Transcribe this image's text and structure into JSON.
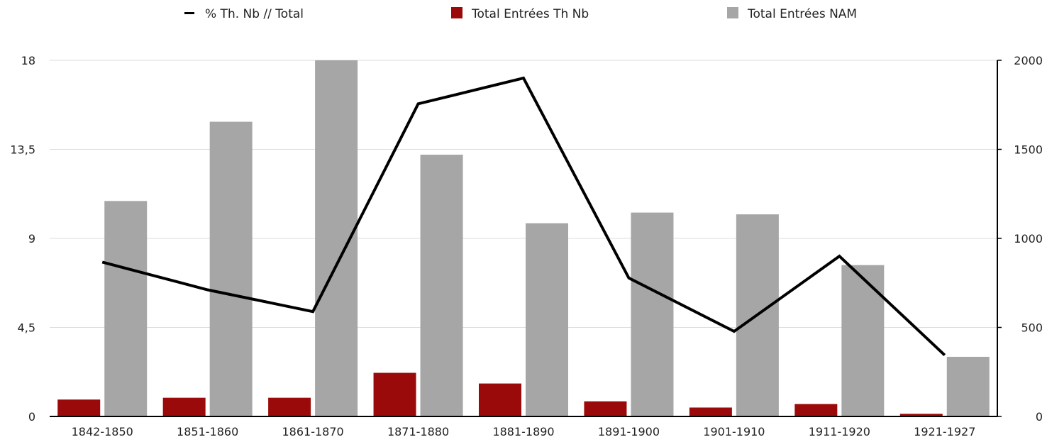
{
  "chart_data": {
    "type": "bar",
    "categories": [
      "1842-1850",
      "1851-1860",
      "1861-1870",
      "1871-1880",
      "1881-1890",
      "1891-1900",
      "1901-1910",
      "1911-1920",
      "1921-1927"
    ],
    "series": [
      {
        "name": "Total Entrées Th Nb",
        "type": "bar",
        "axis": "right",
        "color": "#9b0a0a",
        "values": [
          95,
          105,
          105,
          245,
          185,
          85,
          50,
          70,
          15
        ]
      },
      {
        "name": "Total Entrées NAM",
        "type": "bar",
        "axis": "right",
        "color": "#a6a6a6",
        "values": [
          1210,
          1655,
          2000,
          1470,
          1085,
          1145,
          1135,
          850,
          335
        ]
      },
      {
        "name": "% Th. Nb // Total",
        "type": "line",
        "axis": "left",
        "color": "#000000",
        "values": [
          7.8,
          6.4,
          5.3,
          15.8,
          17.1,
          7.0,
          4.3,
          8.1,
          3.1
        ]
      }
    ],
    "y_left": {
      "ylim": [
        0,
        18
      ],
      "ticks": [
        "0",
        "4,5",
        "9",
        "13,5",
        "18"
      ]
    },
    "y_right": {
      "ylim": [
        0,
        2000
      ],
      "ticks": [
        "0",
        "500",
        "1000",
        "1500",
        "2000"
      ]
    },
    "grid": true,
    "legend_position": "top"
  },
  "legend": [
    {
      "label": "% Th. Nb // Total",
      "marker": "line",
      "color": "#000000"
    },
    {
      "label": "Total Entrées Th Nb",
      "marker": "square",
      "color": "#9b0a0a"
    },
    {
      "label": "Total Entrées NAM",
      "marker": "square",
      "color": "#a6a6a6"
    }
  ]
}
